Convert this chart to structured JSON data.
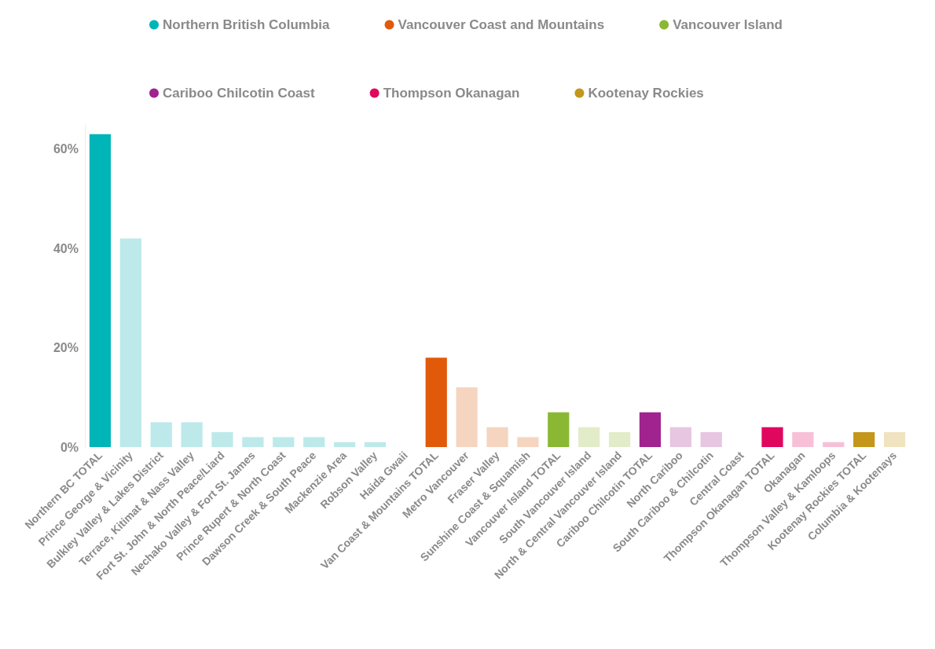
{
  "chart_data": {
    "type": "bar",
    "stacked": true,
    "grid": false,
    "legend": "top",
    "categories": [
      "Northern BC TOTAL",
      "Prince George & Vicinity",
      "Bulkley Valley & Lakes District",
      "Terrace, Kitimat & Nass Valley",
      "Fort St. John & North Peace/Liard",
      "Nechako Valley & Fort St. James",
      "Prince Rupert & North Coast",
      "Dawson Creek & South Peace",
      "Mackenzie Area",
      "Robson Valley",
      "Haida Gwaii",
      "Van Coast & Mountains TOTAL",
      "Metro Vancouver",
      "Fraser Valley",
      "Sunshine Coast & Squamish",
      "Vancouver Island TOTAL",
      "South Vancouver Island",
      "North & Central Vancouver Island",
      "Cariboo Chilcotin TOTAL",
      "North Cariboo",
      "South Cariboo & Chilcotin",
      "Central Coast",
      "Thompson Okanagan TOTAL",
      "Okanagan",
      "Thompson Valley & Kamloops",
      "Kootenay Rockies TOTAL",
      "Columbia & Kootenays"
    ],
    "ylim": [
      0,
      65
    ],
    "yticks": [
      {
        "value": 0,
        "label": "0%"
      },
      {
        "value": 20,
        "label": "20%"
      },
      {
        "value": 40,
        "label": "40%"
      },
      {
        "value": 60,
        "label": "60%"
      }
    ],
    "series": [
      {
        "name": "Northern British Columbia",
        "color": "#00b5b8",
        "colors": [
          "#00b5b8",
          "#bde9ea",
          "#bde9ea",
          "#bde9ea",
          "#bde9ea",
          "#bde9ea",
          "#bde9ea",
          "#bde9ea",
          "#bde9ea",
          "#bde9ea",
          "#bde9ea",
          null,
          null,
          null,
          null,
          null,
          null,
          null,
          null,
          null,
          null,
          null,
          null,
          null,
          null,
          null,
          null
        ],
        "values": [
          63,
          42,
          5,
          5,
          3,
          2,
          2,
          2,
          1,
          1,
          0,
          null,
          null,
          null,
          null,
          null,
          null,
          null,
          null,
          null,
          null,
          null,
          null,
          null,
          null,
          null,
          null
        ]
      },
      {
        "name": "Vancouver Coast and Mountains",
        "color": "#e05a0a",
        "colors": [
          null,
          null,
          null,
          null,
          null,
          null,
          null,
          null,
          null,
          null,
          null,
          "#e05a0a",
          "#f5d5c0",
          "#f5d5c0",
          "#f5d5c0",
          null,
          null,
          null,
          null,
          null,
          null,
          null,
          null,
          null,
          null,
          null,
          null
        ],
        "values": [
          null,
          null,
          null,
          null,
          null,
          null,
          null,
          null,
          null,
          null,
          null,
          18,
          12,
          4,
          2,
          null,
          null,
          null,
          null,
          null,
          null,
          null,
          null,
          null,
          null,
          null,
          null
        ]
      },
      {
        "name": "Vancouver Island",
        "color": "#8ab833",
        "colors": [
          null,
          null,
          null,
          null,
          null,
          null,
          null,
          null,
          null,
          null,
          null,
          null,
          null,
          null,
          null,
          "#8ab833",
          "#e2ecc8",
          "#e2ecc8",
          null,
          null,
          null,
          null,
          null,
          null,
          null,
          null,
          null
        ],
        "values": [
          null,
          null,
          null,
          null,
          null,
          null,
          null,
          null,
          null,
          null,
          null,
          null,
          null,
          null,
          null,
          7,
          4,
          3,
          null,
          null,
          null,
          null,
          null,
          null,
          null,
          null,
          null
        ]
      },
      {
        "name": "Cariboo Chilcotin Coast",
        "color": "#a0238f",
        "colors": [
          null,
          null,
          null,
          null,
          null,
          null,
          null,
          null,
          null,
          null,
          null,
          null,
          null,
          null,
          null,
          null,
          null,
          null,
          "#a0238f",
          "#e6c6e0",
          "#e6c6e0",
          "#e6c6e0",
          null,
          null,
          null,
          null,
          null
        ],
        "values": [
          null,
          null,
          null,
          null,
          null,
          null,
          null,
          null,
          null,
          null,
          null,
          null,
          null,
          null,
          null,
          null,
          null,
          null,
          7,
          4,
          3,
          0,
          null,
          null,
          null,
          null,
          null
        ]
      },
      {
        "name": "Thompson Okanagan",
        "color": "#e0085e",
        "colors": [
          null,
          null,
          null,
          null,
          null,
          null,
          null,
          null,
          null,
          null,
          null,
          null,
          null,
          null,
          null,
          null,
          null,
          null,
          null,
          null,
          null,
          null,
          "#e0085e",
          "#f7c0d6",
          "#f7c0d6",
          null,
          null
        ],
        "values": [
          null,
          null,
          null,
          null,
          null,
          null,
          null,
          null,
          null,
          null,
          null,
          null,
          null,
          null,
          null,
          null,
          null,
          null,
          null,
          null,
          null,
          null,
          4,
          3,
          1,
          null,
          null
        ]
      },
      {
        "name": "Kootenay Rockies",
        "color": "#c4961a",
        "colors": [
          null,
          null,
          null,
          null,
          null,
          null,
          null,
          null,
          null,
          null,
          null,
          null,
          null,
          null,
          null,
          null,
          null,
          null,
          null,
          null,
          null,
          null,
          null,
          null,
          null,
          "#c4961a",
          "#efe3c0"
        ],
        "values": [
          null,
          null,
          null,
          null,
          null,
          null,
          null,
          null,
          null,
          null,
          null,
          null,
          null,
          null,
          null,
          null,
          null,
          null,
          null,
          null,
          null,
          null,
          null,
          null,
          null,
          3,
          3
        ]
      }
    ]
  }
}
